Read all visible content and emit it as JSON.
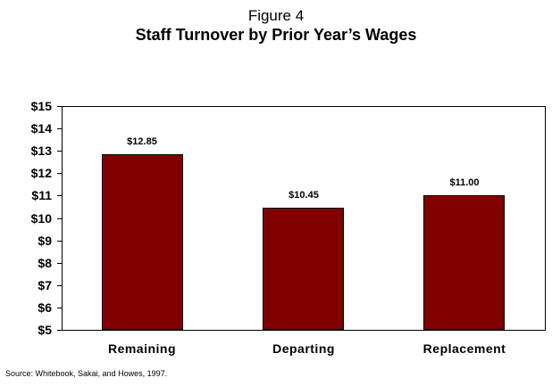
{
  "chart_data": {
    "type": "bar",
    "title": "Figure 4",
    "subtitle": "Staff Turnover by Prior Year’s Wages",
    "categories": [
      "Remaining",
      "Departing",
      "Replacement"
    ],
    "values": [
      12.85,
      10.45,
      11.0
    ],
    "data_labels": [
      "$12.85",
      "$10.45",
      "$11.00"
    ],
    "xlabel": "",
    "ylabel": "",
    "ylim": [
      5,
      15
    ],
    "yticks": [
      "$15",
      "$14",
      "$13",
      "$12",
      "$11",
      "$10",
      "$9",
      "$8",
      "$7",
      "$6",
      "$5"
    ],
    "grid": false,
    "legend": "none",
    "bar_color": "#800000",
    "source": "Source: Whitebook, Sakai, and Howes, 1997."
  }
}
